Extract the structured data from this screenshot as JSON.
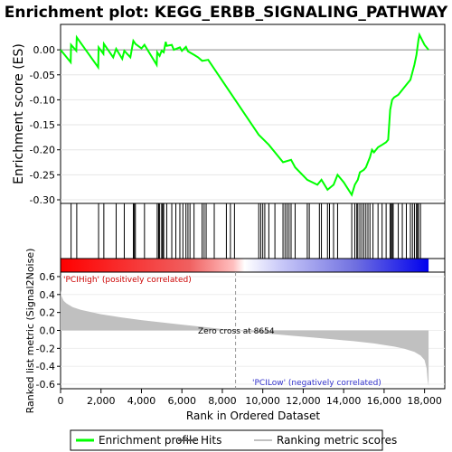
{
  "chart_data": {
    "type": "line",
    "title": "Enrichment plot: KEGG_ERBB_SIGNALING_PATHWAY",
    "es_panel": {
      "ylabel": "Enrichment score (ES)",
      "ylim": [
        -0.3,
        0.04
      ],
      "yticks": [
        0.0,
        -0.05,
        -0.1,
        -0.15,
        -0.2,
        -0.25,
        -0.3
      ],
      "ytick_labels": [
        "0.00",
        "-0.05",
        "-0.10",
        "-0.15",
        "-0.20",
        "-0.25",
        "-0.30"
      ],
      "series": [
        {
          "name": "Enrichment profile",
          "color": "#00ff00",
          "x": [
            0,
            500,
            520,
            780,
            800,
            1860,
            1880,
            2120,
            2140,
            2600,
            2750,
            3050,
            3150,
            3450,
            3600,
            3700,
            4000,
            4150,
            4750,
            4780,
            4900,
            5000,
            5100,
            5200,
            5250,
            5500,
            5600,
            5900,
            6000,
            6200,
            6300,
            6600,
            6800,
            7000,
            7300,
            9800,
            10300,
            11000,
            11400,
            11600,
            12200,
            12700,
            12900,
            13200,
            13500,
            13700,
            14000,
            14400,
            14550,
            14700,
            14800,
            15000,
            15100,
            15200,
            15300,
            15400,
            15500,
            15700,
            15900,
            16100,
            16200,
            16300,
            16350,
            16400,
            16500,
            16700,
            16900,
            17100,
            17300,
            17400,
            17500,
            17600,
            17700,
            17750,
            18000,
            18200
          ],
          "y": [
            0.0,
            -0.025,
            0.01,
            -0.002,
            0.025,
            -0.035,
            0.005,
            -0.008,
            0.012,
            -0.015,
            0.002,
            -0.018,
            -0.002,
            -0.015,
            0.018,
            0.012,
            0.003,
            0.01,
            -0.03,
            -0.005,
            -0.012,
            -0.002,
            -0.005,
            0.016,
            0.008,
            0.01,
            0.0,
            0.005,
            -0.002,
            0.006,
            -0.003,
            -0.01,
            -0.015,
            -0.022,
            -0.02,
            -0.17,
            -0.19,
            -0.225,
            -0.22,
            -0.235,
            -0.26,
            -0.27,
            -0.26,
            -0.28,
            -0.27,
            -0.25,
            -0.265,
            -0.29,
            -0.27,
            -0.26,
            -0.245,
            -0.24,
            -0.235,
            -0.225,
            -0.215,
            -0.2,
            -0.205,
            -0.195,
            -0.19,
            -0.185,
            -0.18,
            -0.12,
            -0.11,
            -0.1,
            -0.095,
            -0.09,
            -0.08,
            -0.07,
            -0.06,
            -0.045,
            -0.03,
            -0.01,
            0.02,
            0.03,
            0.01,
            0.0
          ]
        }
      ]
    },
    "hits_panel": {
      "name": "Hits",
      "color": "#000000",
      "positions": [
        520,
        800,
        1880,
        2140,
        2750,
        3150,
        3600,
        3650,
        3700,
        4150,
        4780,
        4850,
        4900,
        5000,
        5050,
        5100,
        5250,
        5500,
        5700,
        5900,
        6050,
        6200,
        6300,
        6400,
        6600,
        7000,
        7100,
        7200,
        7600,
        8200,
        8400,
        8600,
        9800,
        9900,
        10000,
        10100,
        10300,
        10600,
        11000,
        11100,
        11200,
        11300,
        11400,
        11600,
        12200,
        12300,
        12800,
        12900,
        13200,
        13300,
        13500,
        13700,
        14400,
        14550,
        14650,
        14700,
        14800,
        14900,
        15000,
        15100,
        15200,
        15300,
        15450,
        15700,
        15900,
        16100,
        16300,
        16350,
        16400,
        16450,
        16700,
        16900,
        17100,
        17300,
        17400,
        17500,
        17600,
        17650,
        17700,
        17800
      ]
    },
    "metric_panel": {
      "name": "Ranking metric scores",
      "ylabel": "Ranked list metric (Signal2Noise)",
      "ylim": [
        -0.65,
        0.65
      ],
      "yticks": [
        0.6,
        0.4,
        0.2,
        0.0,
        -0.2,
        -0.4,
        -0.6
      ],
      "ytick_labels": [
        "0.6",
        "0.4",
        "0.2",
        "0.0",
        "-0.2",
        "-0.4",
        "-0.6"
      ],
      "color": "#c0c0c0",
      "curve_x": [
        0,
        50,
        150,
        300,
        600,
        1000,
        2000,
        3000,
        4000,
        5000,
        6000,
        7000,
        8000,
        8654,
        9500,
        10500,
        11500,
        12500,
        13500,
        14500,
        15500,
        16500,
        17000,
        17500,
        17800,
        18000,
        18100,
        18150,
        18200
      ],
      "curve_y": [
        0.45,
        0.38,
        0.33,
        0.3,
        0.26,
        0.23,
        0.18,
        0.145,
        0.115,
        0.09,
        0.065,
        0.04,
        0.015,
        0.0,
        -0.02,
        -0.04,
        -0.06,
        -0.08,
        -0.1,
        -0.12,
        -0.145,
        -0.18,
        -0.205,
        -0.24,
        -0.28,
        -0.33,
        -0.42,
        -0.55,
        -0.62
      ],
      "zero_cross": 8654,
      "zero_cross_label": "Zero cross at 8654",
      "pos_label": "'PCIHigh' (positively correlated)",
      "neg_label": "'PCILow' (negatively correlated)",
      "pos_label_color": "#cc0000",
      "neg_label_color": "#3333cc"
    },
    "x_axis": {
      "xlabel": "Rank in Ordered Dataset",
      "xlim": [
        0,
        19000
      ],
      "xticks": [
        0,
        2000,
        4000,
        6000,
        8000,
        10000,
        12000,
        14000,
        16000,
        18000
      ],
      "xtick_labels": [
        "0",
        "2,000",
        "4,000",
        "6,000",
        "8,000",
        "10,000",
        "12,000",
        "14,000",
        "16,000",
        "18,000"
      ],
      "dataset_size": 18200
    },
    "legend": {
      "placement": "bottom",
      "items": [
        {
          "label": "Enrichment profile",
          "color": "#00ff00"
        },
        {
          "label": "Hits",
          "color": "#555555"
        },
        {
          "label": "Ranking metric scores",
          "color": "#c0c0c0"
        }
      ]
    }
  }
}
